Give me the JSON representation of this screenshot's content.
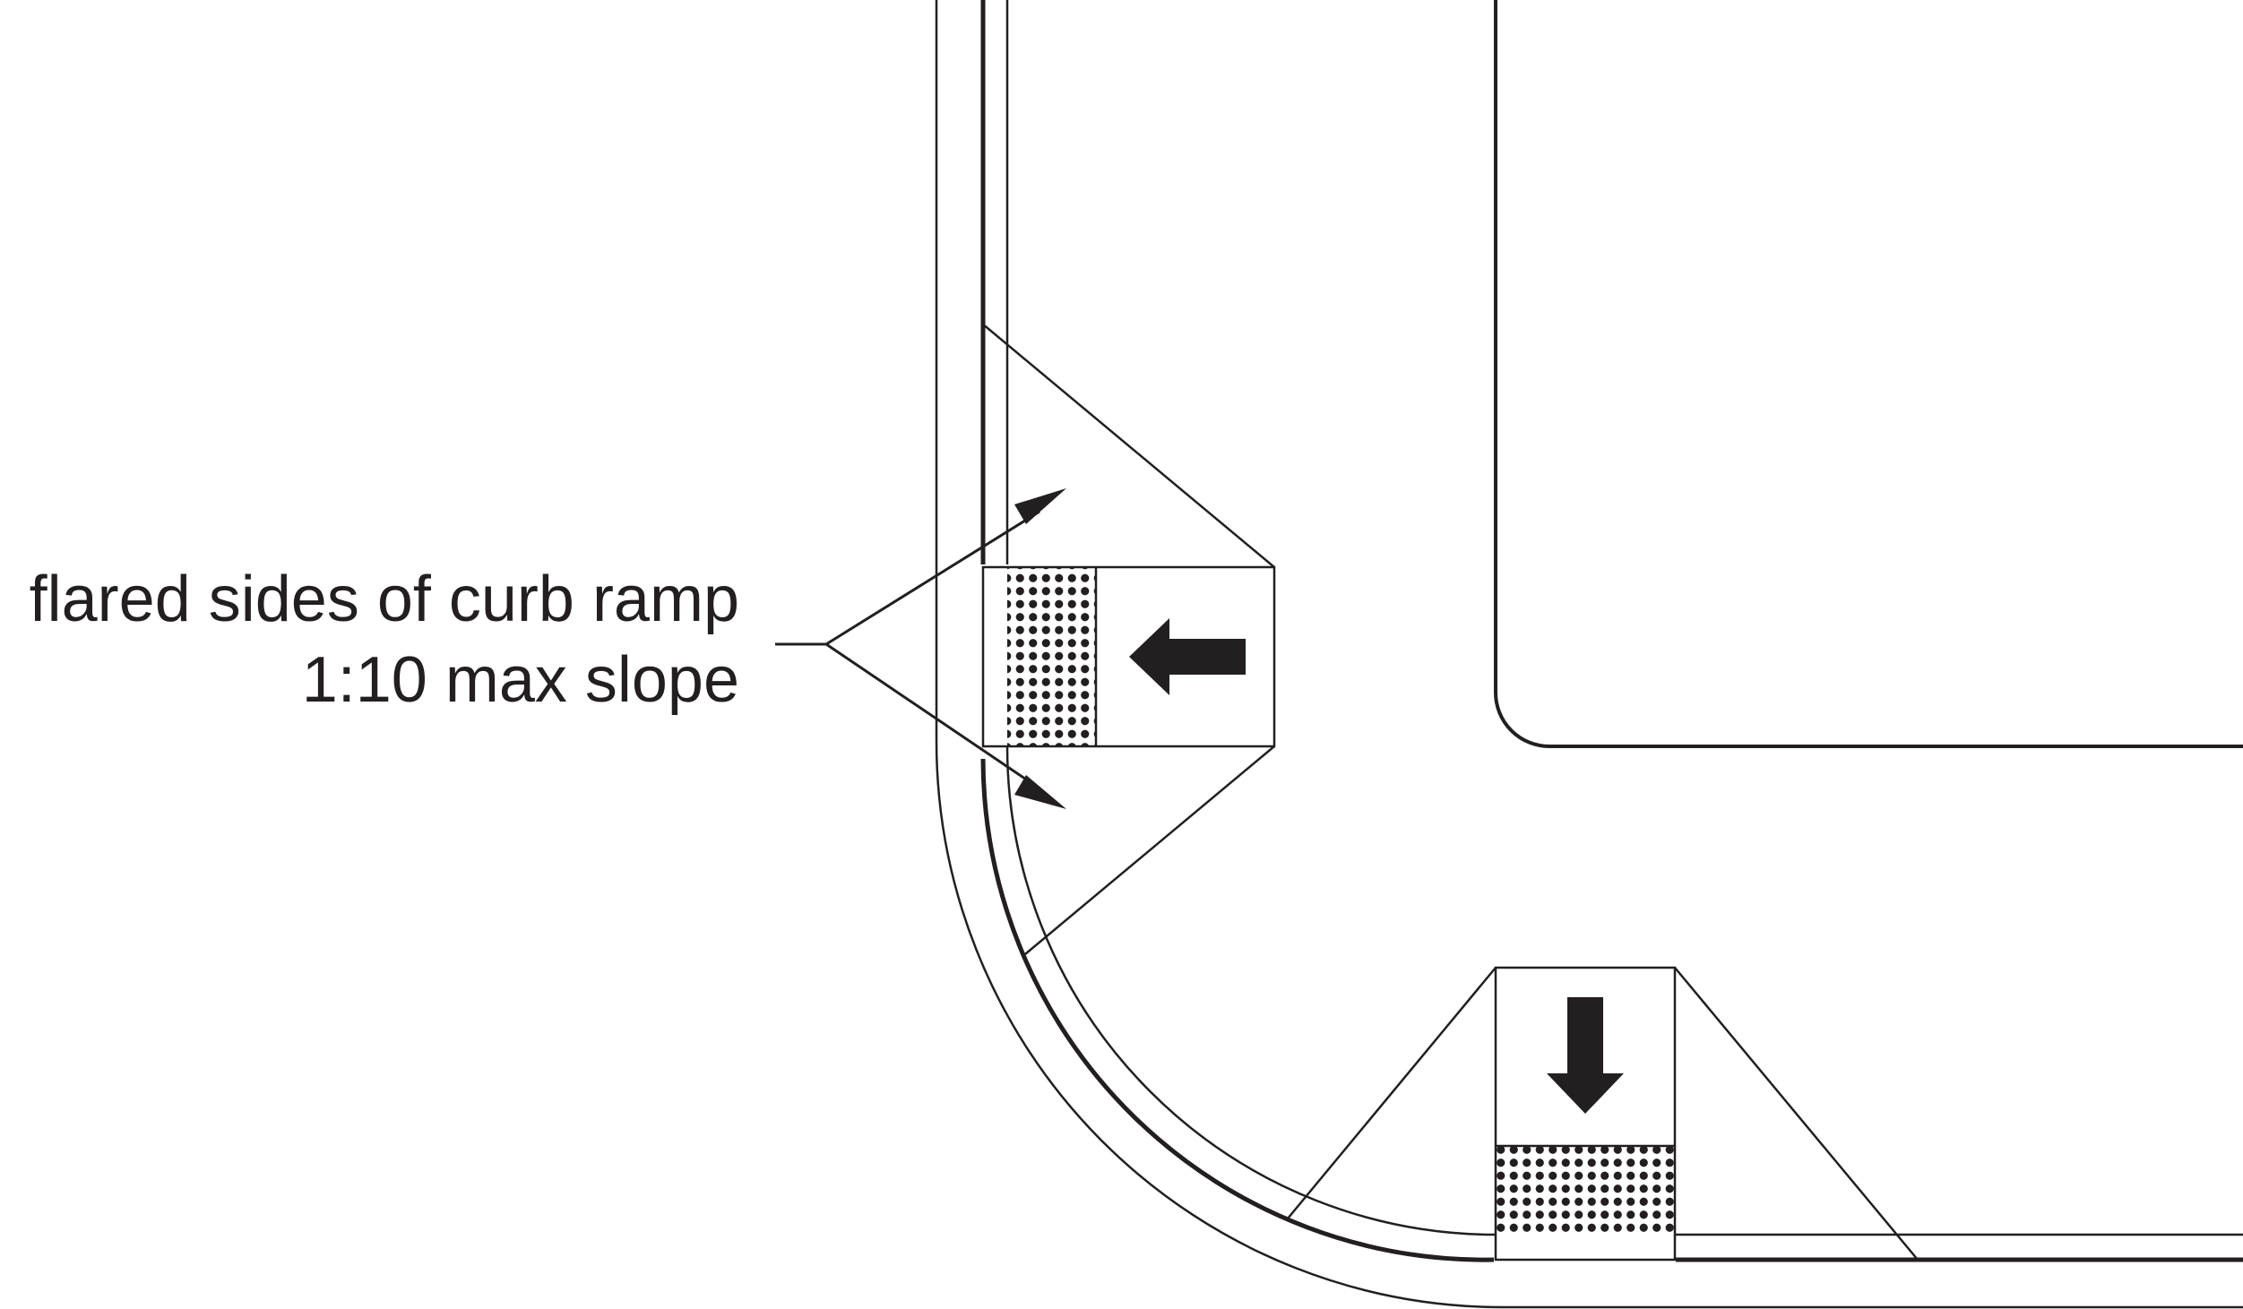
{
  "callout": {
    "line1": "flared sides of curb ramp",
    "line2": "1:10 max slope"
  },
  "colors": {
    "ink": "#231f20",
    "paper": "#ffffff"
  },
  "icons": {
    "left_ramp_direction": "arrow-left-icon",
    "bottom_ramp_direction": "arrow-down-icon"
  }
}
